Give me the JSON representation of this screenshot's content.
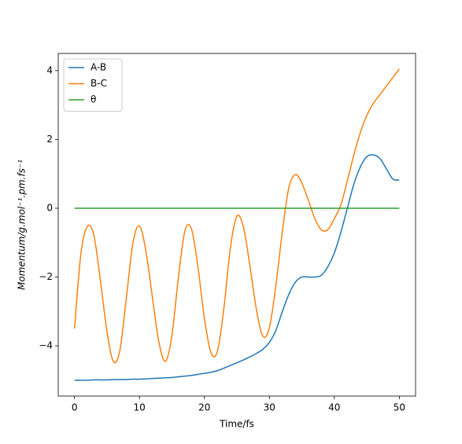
{
  "chart_data": {
    "type": "line",
    "xlabel": "Time/fs",
    "ylabel": "Momentum/g.mol⁻¹.pm.fs⁻¹",
    "x": [
      0,
      1,
      2,
      3,
      4,
      5,
      6,
      7,
      8,
      9,
      10,
      11,
      12,
      13,
      14,
      15,
      16,
      17,
      18,
      19,
      20,
      21,
      22,
      23,
      24,
      25,
      26,
      27,
      28,
      29,
      30,
      31,
      32,
      33,
      34,
      35,
      36,
      37,
      38,
      39,
      40,
      41,
      42,
      43,
      44,
      45,
      46,
      47,
      48,
      49,
      50
    ],
    "series": [
      {
        "name": "A-B",
        "color": "#1f77b4",
        "values": [
          -5.0,
          -5.0,
          -5.0,
          -4.99,
          -4.99,
          -4.99,
          -4.98,
          -4.98,
          -4.98,
          -4.97,
          -4.97,
          -4.96,
          -4.95,
          -4.94,
          -4.93,
          -4.92,
          -4.9,
          -4.88,
          -4.86,
          -4.83,
          -4.8,
          -4.77,
          -4.72,
          -4.65,
          -4.57,
          -4.49,
          -4.41,
          -4.32,
          -4.22,
          -4.1,
          -3.9,
          -3.55,
          -3.0,
          -2.5,
          -2.15,
          -2.0,
          -2.0,
          -2.0,
          -1.95,
          -1.7,
          -1.3,
          -0.7,
          0.0,
          0.7,
          1.2,
          1.5,
          1.55,
          1.45,
          1.15,
          0.85,
          0.82
        ]
      },
      {
        "name": "B-C",
        "color": "#ff7f0e",
        "values": [
          -3.5,
          -1.3,
          -0.52,
          -0.8,
          -2.12,
          -3.58,
          -4.46,
          -4.12,
          -2.58,
          -1.0,
          -0.52,
          -1.25,
          -2.6,
          -3.9,
          -4.45,
          -3.7,
          -2.0,
          -0.65,
          -0.6,
          -1.7,
          -3.2,
          -4.2,
          -4.16,
          -2.9,
          -1.15,
          -0.23,
          -0.54,
          -1.67,
          -2.94,
          -3.72,
          -3.47,
          -2.25,
          -0.67,
          0.6,
          0.98,
          0.73,
          0.23,
          -0.3,
          -0.63,
          -0.62,
          -0.3,
          0.1,
          0.8,
          1.55,
          2.2,
          2.7,
          3.05,
          3.3,
          3.55,
          3.8,
          4.05
        ]
      },
      {
        "name": "θ",
        "color": "#2ca02c",
        "values": [
          0,
          0,
          0,
          0,
          0,
          0,
          0,
          0,
          0,
          0,
          0,
          0,
          0,
          0,
          0,
          0,
          0,
          0,
          0,
          0,
          0,
          0,
          0,
          0,
          0,
          0,
          0,
          0,
          0,
          0,
          0,
          0,
          0,
          0,
          0,
          0,
          0,
          0,
          0,
          0,
          0,
          0,
          0,
          0,
          0,
          0,
          0,
          0,
          0,
          0,
          0
        ]
      }
    ],
    "xlim": [
      -2.5,
      52.5
    ],
    "ylim": [
      -5.46,
      4.5
    ],
    "xticks": [
      0,
      10,
      20,
      30,
      40,
      50
    ],
    "yticks": [
      {
        "value": -4,
        "label": "−4"
      },
      {
        "value": -2,
        "label": "−2"
      },
      0,
      2,
      4
    ],
    "legend": "upper left",
    "grid": false
  }
}
